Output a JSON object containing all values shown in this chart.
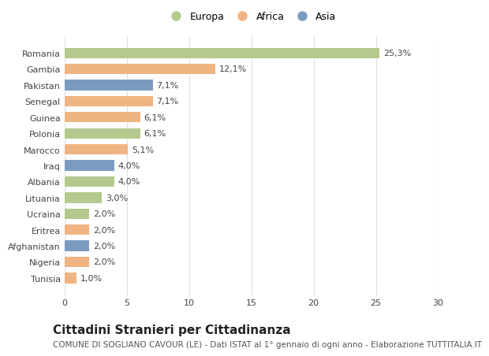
{
  "categories": [
    "Romania",
    "Gambia",
    "Pakistan",
    "Senegal",
    "Guinea",
    "Polonia",
    "Marocco",
    "Iraq",
    "Albania",
    "Lituania",
    "Ucraina",
    "Eritrea",
    "Afghanistan",
    "Nigeria",
    "Tunisia"
  ],
  "values": [
    25.3,
    12.1,
    7.1,
    7.1,
    6.1,
    6.1,
    5.1,
    4.0,
    4.0,
    3.0,
    2.0,
    2.0,
    2.0,
    2.0,
    1.0
  ],
  "labels": [
    "25,3%",
    "12,1%",
    "7,1%",
    "7,1%",
    "6,1%",
    "6,1%",
    "5,1%",
    "4,0%",
    "4,0%",
    "3,0%",
    "2,0%",
    "2,0%",
    "2,0%",
    "2,0%",
    "1,0%"
  ],
  "colors": [
    "#b5c98e",
    "#f0b482",
    "#7b9cc0",
    "#f0b482",
    "#f0b482",
    "#b5c98e",
    "#f0b482",
    "#7b9cc0",
    "#b5c98e",
    "#b5c98e",
    "#b5c98e",
    "#f0b482",
    "#7b9cc0",
    "#f0b482",
    "#f0b482"
  ],
  "continent_labels": [
    "Europa",
    "Africa",
    "Asia"
  ],
  "continent_colors": [
    "#b5c98e",
    "#f0b482",
    "#7b9cc0"
  ],
  "xlim": [
    0,
    30
  ],
  "xticks": [
    0,
    5,
    10,
    15,
    20,
    25,
    30
  ],
  "title": "Cittadini Stranieri per Cittadinanza",
  "subtitle": "COMUNE DI SOGLIANO CAVOUR (LE) - Dati ISTAT al 1° gennaio di ogni anno - Elaborazione TUTTITALIA.IT",
  "background_color": "#ffffff",
  "grid_color": "#e0e0e0",
  "bar_height": 0.65,
  "label_fontsize": 8,
  "tick_fontsize": 8,
  "title_fontsize": 11,
  "subtitle_fontsize": 7.5
}
